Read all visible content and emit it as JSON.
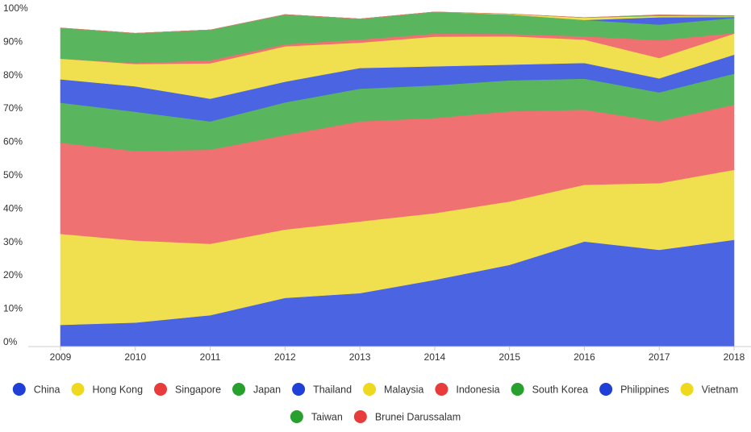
{
  "chart_data": {
    "type": "area",
    "stacked": true,
    "percent": true,
    "x": [
      "2009",
      "2010",
      "2011",
      "2012",
      "2013",
      "2014",
      "2015",
      "2016",
      "2017",
      "2018"
    ],
    "y_ticks": [
      "0%",
      "10%",
      "20%",
      "30%",
      "40%",
      "50%",
      "60%",
      "70%",
      "80%",
      "90%",
      "100%"
    ],
    "ylim": [
      0,
      100
    ],
    "grid": false,
    "legend_position": "bottom",
    "series": [
      {
        "name": "China",
        "color": "#4a64e2",
        "legend_color": "#1f3fd6",
        "values": [
          6.5,
          7.2,
          9.4,
          14.6,
          16,
          20,
          24.5,
          31.5,
          29,
          32
        ]
      },
      {
        "name": "Hong Kong",
        "color": "#f0df4e",
        "legend_color": "#eed91f",
        "values": [
          27.3,
          24.6,
          21.4,
          20.5,
          21.5,
          20,
          19,
          17,
          20,
          21
        ]
      },
      {
        "name": "Singapore",
        "color": "#f07171",
        "legend_color": "#e83c3c",
        "values": [
          27.3,
          26.8,
          28.2,
          28.3,
          30,
          28.5,
          27,
          22.5,
          18.5,
          19.5
        ]
      },
      {
        "name": "Japan",
        "color": "#5ab65e",
        "legend_color": "#27a02e",
        "values": [
          12,
          11.8,
          8.5,
          9.8,
          9.8,
          9.8,
          9.3,
          9.3,
          8.7,
          9.3
        ]
      },
      {
        "name": "Thailand",
        "color": "#4a64e2",
        "legend_color": "#1f3fd6",
        "values": [
          7,
          7.6,
          6.8,
          6.2,
          6.2,
          5.7,
          4.7,
          4.7,
          4.2,
          5.7
        ]
      },
      {
        "name": "Malaysia",
        "color": "#f0df4e",
        "legend_color": "#eed91f",
        "values": [
          6.2,
          6.7,
          10.6,
          10.6,
          7.6,
          8.9,
          8.5,
          7,
          6.1,
          6.3
        ]
      },
      {
        "name": "Indonesia",
        "color": "#f07171",
        "legend_color": "#e83c3c",
        "values": [
          0,
          0.3,
          0.9,
          0.6,
          0.9,
          0.9,
          0.7,
          1,
          5.3,
          0.2
        ]
      },
      {
        "name": "South Korea",
        "color": "#5ab65e",
        "legend_color": "#27a02e",
        "values": [
          9.2,
          8.9,
          9.1,
          8.9,
          6.2,
          6.5,
          5.8,
          4.9,
          4.7,
          4.5
        ]
      },
      {
        "name": "Philippines",
        "color": "#4a64e2",
        "legend_color": "#1f3fd6",
        "values": [
          0,
          0,
          0,
          0,
          0,
          0,
          0,
          0,
          2.2,
          0.3
        ]
      },
      {
        "name": "Vietnam",
        "color": "#f0df4e",
        "legend_color": "#eed91f",
        "values": [
          0,
          0,
          0,
          0,
          0,
          0,
          0.2,
          0.7,
          0.4,
          0.2
        ]
      },
      {
        "name": "Taiwan",
        "color": "#5ab65e",
        "legend_color": "#27a02e",
        "values": [
          0,
          0,
          0,
          0,
          0,
          0,
          0,
          0,
          0.3,
          0.2
        ]
      },
      {
        "name": "Brunei Darussalam",
        "color": "#f07171",
        "legend_color": "#e83c3c",
        "values": [
          0,
          0,
          0,
          0,
          0,
          0,
          0,
          0,
          0,
          0
        ]
      }
    ]
  }
}
